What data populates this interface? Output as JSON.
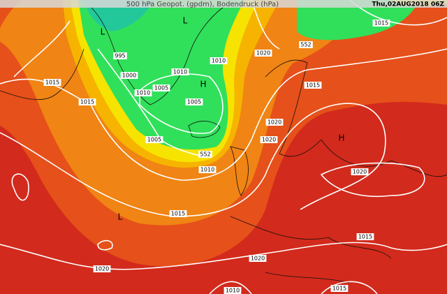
{
  "header": {
    "title": "500 hPa Geopot. (gpdm), Bodendruck (hPa)",
    "datetime": "Thu,02AUG2018 06Z"
  },
  "labels": [
    "L",
    "L",
    "995",
    "1000",
    "1010",
    "1010",
    "1005",
    "1010",
    "H",
    "1005",
    "1015",
    "1015",
    "1020",
    "552",
    "1015",
    "1015",
    "1020",
    "1020",
    "H",
    "1005",
    "552",
    "1010",
    "1015",
    "L",
    "1020",
    "1015",
    "1020",
    "1020",
    "1010",
    "1015"
  ]
}
